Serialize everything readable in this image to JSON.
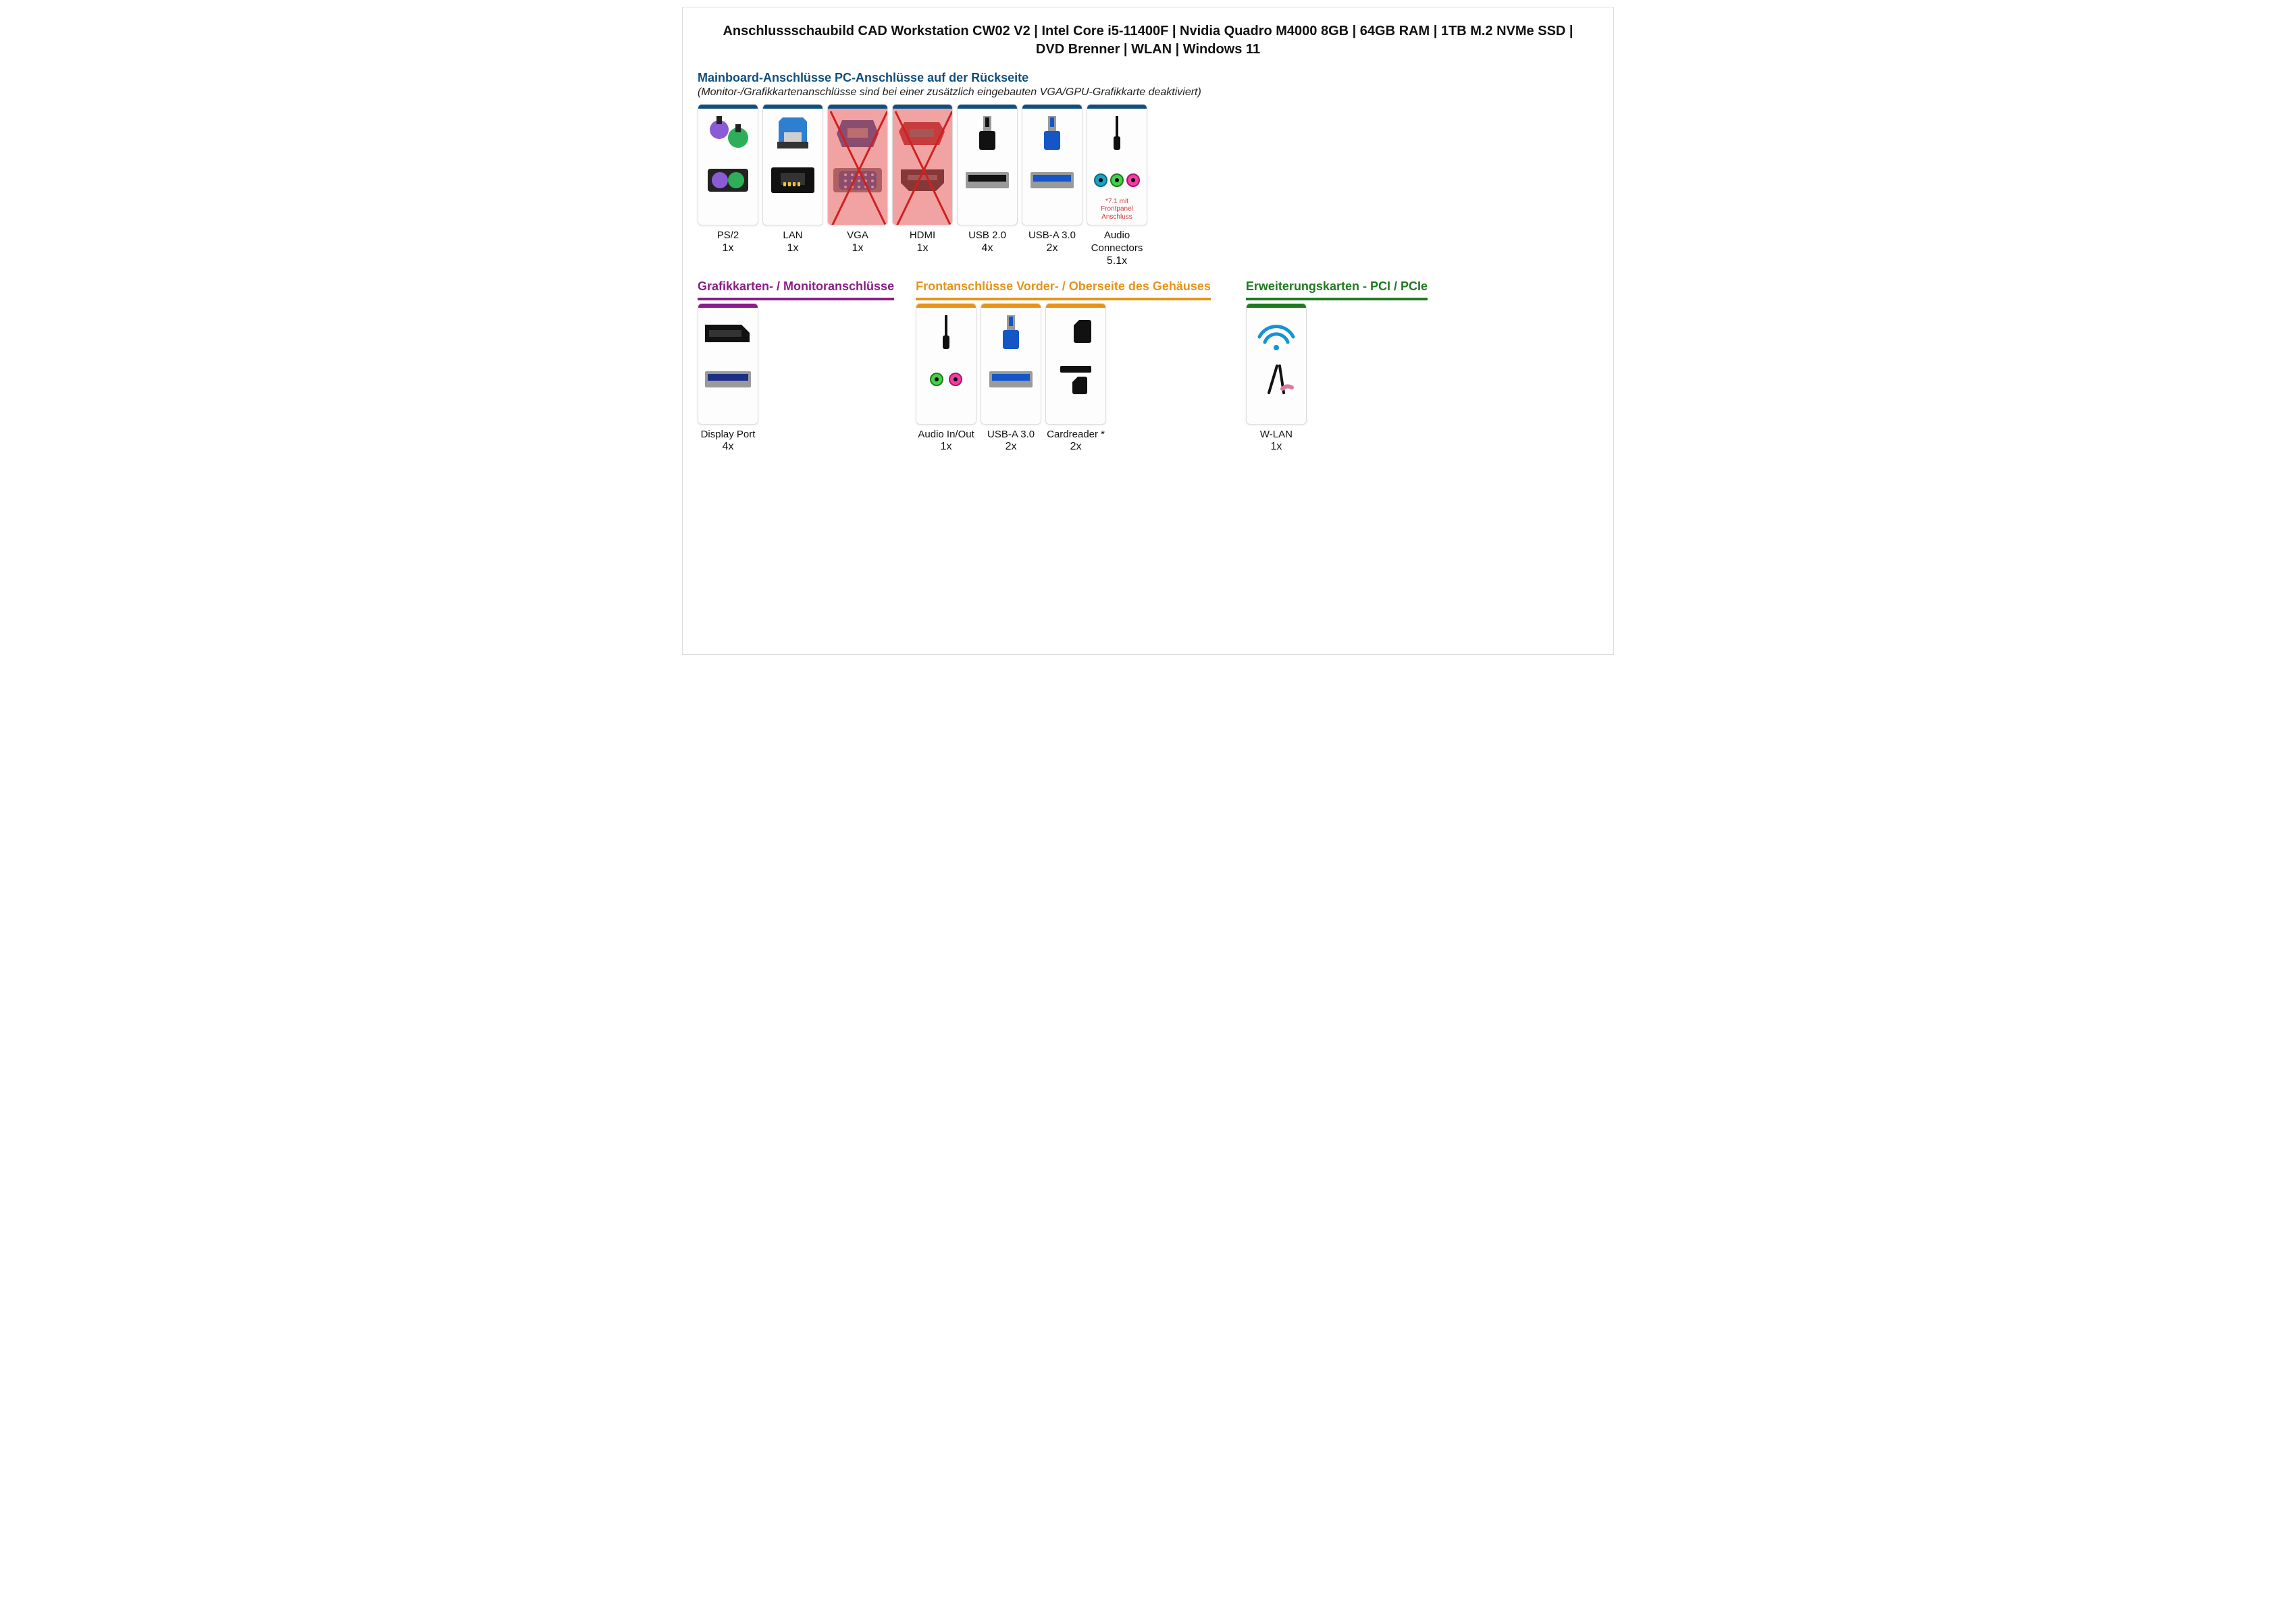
{
  "page": {
    "title": "Anschlussschaubild CAD Workstation CW02 V2 | Intel Core i5-11400F | Nvidia Quadro M4000 8GB | 64GB RAM | 1TB M.2 NVMe SSD | DVD Brenner | WLAN | Windows 11",
    "border_color": "#dcdcdc",
    "background": "#ffffff"
  },
  "colors": {
    "heading_blue": "#0f4f7d",
    "purple": "#8a1d8a",
    "orange": "#e69419",
    "green": "#1f7a1f",
    "tile_border": "#dcdcdc",
    "disabled_fill": "rgba(232,90,90,0.55)",
    "cross_stroke": "#d02020",
    "note_red": "#d03a3a",
    "title_text": "#111111"
  },
  "sections": {
    "mainboard": {
      "heading": "Mainboard-Anschlüsse PC-Anschlüsse auf der Rückseite",
      "sub": "(Monitor-/Grafikkartenanschlüsse sind bei einer zusätzlich eingebauten VGA/GPU-Grafikkarte deaktiviert)",
      "heading_color": "#0f4f7d",
      "bar_color": "#0f4f7d",
      "ports": [
        {
          "id": "ps2",
          "label": "PS/2",
          "count": "1x",
          "icon": "ps2"
        },
        {
          "id": "lan",
          "label": "LAN",
          "count": "1x",
          "icon": "lan"
        },
        {
          "id": "vga",
          "label": "VGA",
          "count": "1x",
          "icon": "vga",
          "disabled": true
        },
        {
          "id": "hdmi",
          "label": "HDMI",
          "count": "1x",
          "icon": "hdmi",
          "disabled": true
        },
        {
          "id": "usb2",
          "label": "USB 2.0",
          "count": "4x",
          "icon": "usb_black"
        },
        {
          "id": "usb3",
          "label": "USB-A 3.0",
          "count": "2x",
          "icon": "usb_blue"
        },
        {
          "id": "audio",
          "label": "Audio Connectors",
          "count": "5.1x",
          "icon": "audio3",
          "note": "*7.1 mit Frontpanel Anschluss"
        }
      ]
    },
    "gpu": {
      "heading": "Grafikkarten- / Monitoranschlüsse",
      "heading_color": "#8a1d8a",
      "bar_color": "#8a1d8a",
      "ports": [
        {
          "id": "dp",
          "label": "Display Port",
          "count": "4x",
          "icon": "displayport"
        }
      ]
    },
    "front": {
      "heading": "Frontanschlüsse Vorder- / Oberseite des Gehäuses",
      "heading_color": "#e69419",
      "bar_color": "#e69419",
      "ports": [
        {
          "id": "front_audio",
          "label": "Audio In/Out",
          "count": "1x",
          "icon": "audio2"
        },
        {
          "id": "front_usb3",
          "label": "USB-A 3.0",
          "count": "2x",
          "icon": "usb_blue"
        },
        {
          "id": "cardreader",
          "label": "Cardreader *",
          "count": "2x",
          "icon": "cardreader"
        }
      ]
    },
    "pcie": {
      "heading": "Erweiterungskarten - PCI / PCIe",
      "heading_color": "#1f7a1f",
      "bar_color": "#1f7a1f",
      "ports": [
        {
          "id": "wlan",
          "label": "W-LAN",
          "count": "1x",
          "icon": "wlan"
        }
      ]
    }
  }
}
